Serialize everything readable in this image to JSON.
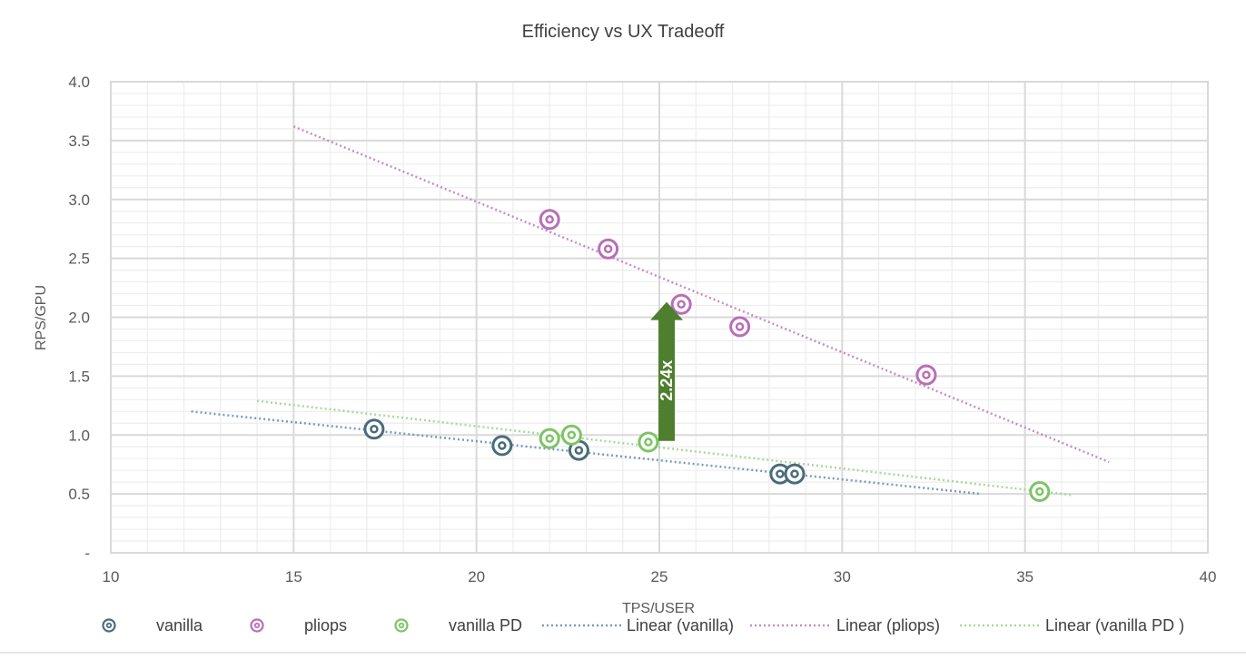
{
  "chart_data": {
    "type": "scatter",
    "title": "Efficiency vs UX Tradeoff",
    "xlabel": "TPS/USER",
    "ylabel": "RPS/GPU",
    "xlim": [
      10,
      40
    ],
    "ylim": [
      0,
      4.0
    ],
    "x_ticks": [
      "10",
      "15",
      "20",
      "25",
      "30",
      "35",
      "40"
    ],
    "y_ticks": [
      "-",
      "0.5",
      "1.0",
      "1.5",
      "2.0",
      "2.5",
      "3.0",
      "3.5",
      "4.0"
    ],
    "grid": true,
    "legend_position": "bottom",
    "series": [
      {
        "name": "vanilla",
        "color": "#4a6b7c",
        "points": [
          [
            17.2,
            1.05
          ],
          [
            20.7,
            0.91
          ],
          [
            22.8,
            0.87
          ],
          [
            28.3,
            0.67
          ],
          [
            28.7,
            0.67
          ]
        ]
      },
      {
        "name": "pliops",
        "color": "#b86fb6",
        "points": [
          [
            22.0,
            2.83
          ],
          [
            23.6,
            2.58
          ],
          [
            25.6,
            2.11
          ],
          [
            27.2,
            1.92
          ],
          [
            32.3,
            1.51
          ]
        ]
      },
      {
        "name": "vanilla PD",
        "color": "#7dc466",
        "points": [
          [
            22.0,
            0.97
          ],
          [
            22.6,
            1.0
          ],
          [
            24.7,
            0.94
          ],
          [
            35.4,
            0.52
          ]
        ]
      }
    ],
    "trendlines": [
      {
        "name": "Linear (vanilla)",
        "color": "#7a9bb8",
        "x": [
          12.2,
          33.8
        ],
        "y": [
          1.2,
          0.5
        ]
      },
      {
        "name": "Linear (pliops)",
        "color": "#c48fc2",
        "x": [
          15.0,
          37.3
        ],
        "y": [
          3.62,
          0.77
        ]
      },
      {
        "name": "Linear (vanilla PD )",
        "color": "#a9d89a",
        "x": [
          14.0,
          36.3
        ],
        "y": [
          1.29,
          0.49
        ]
      }
    ],
    "annotation": {
      "text": "2.24x",
      "x": 25.2,
      "y_from": 0.95,
      "y_to": 2.13,
      "color": "#4e7f2e"
    }
  }
}
